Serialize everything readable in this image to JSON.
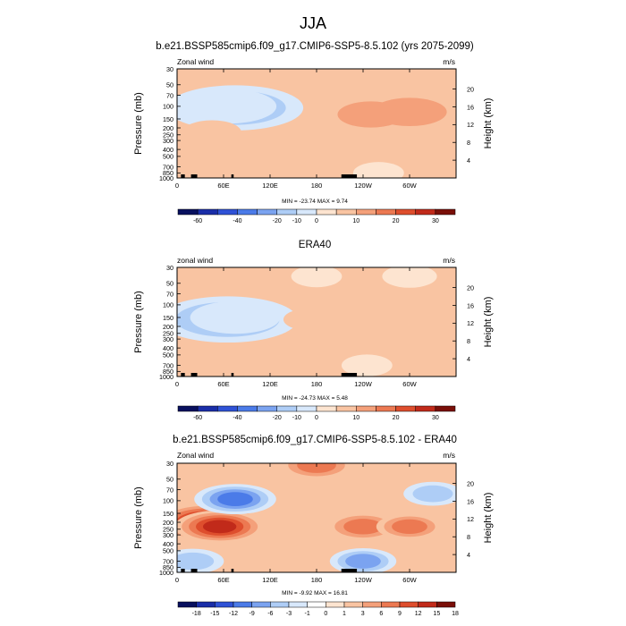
{
  "page": {
    "title": "JJA"
  },
  "colors": {
    "wind_palette": [
      "#08105e",
      "#1a2ea8",
      "#2f52d6",
      "#4b7be8",
      "#7ba3f0",
      "#aecdf6",
      "#d8e8fb",
      "#fde4d0",
      "#f9c4a2",
      "#f4a07a",
      "#ec7952",
      "#de4e2d",
      "#c12a1a",
      "#7a0f08"
    ],
    "diff_palette": [
      "#08105e",
      "#1a2ea8",
      "#2f52d6",
      "#4b7be8",
      "#7ba3f0",
      "#aecdf6",
      "#d8e8fb",
      "#ffffff",
      "#fde4d0",
      "#f9c4a2",
      "#f4a07a",
      "#ec7952",
      "#de4e2d",
      "#c12a1a",
      "#7a0f08"
    ],
    "topography": "#000000"
  },
  "panels": [
    {
      "title": "b.e21.BSSP585cmip6.f09_g17.CMIP6-SSP5-8.5.102 (yrs 2075-2099)",
      "left_label": "Zonal wind",
      "right_label": "m/s",
      "stats": "MIN = -23.74  MAX =  9.74",
      "colorbar_labels": [
        "-60",
        "-40",
        "-20",
        "-10",
        "0",
        "10",
        "20",
        "30"
      ]
    },
    {
      "title": "ERA40",
      "left_label": "zonal wind",
      "right_label": "m/s",
      "stats": "MIN = -24.73  MAX =  5.48",
      "colorbar_labels": [
        "-60",
        "-40",
        "-20",
        "-10",
        "0",
        "10",
        "20",
        "30"
      ]
    },
    {
      "title": "b.e21.BSSP585cmip6.f09_g17.CMIP6-SSP5-8.5.102 - ERA40",
      "left_label": "Zonal wind",
      "right_label": "m/s",
      "stats": "MIN = -9.92  MAX = 16.81",
      "colorbar_labels": [
        "-18",
        "-15",
        "-12",
        "-9",
        "-6",
        "-3",
        "-1",
        "0",
        "1",
        "3",
        "6",
        "9",
        "12",
        "15",
        "18"
      ]
    }
  ],
  "chart_data": [
    {
      "type": "heatmap",
      "title": "b.e21.BSSP585cmip6.f09_g17.CMIP6-SSP5-8.5.102 (yrs 2075-2099)",
      "variable": "Zonal wind",
      "units": "m/s",
      "x_ticks": [
        "0",
        "60E",
        "120E",
        "180",
        "120W",
        "60W"
      ],
      "x_values": [
        0,
        60,
        120,
        180,
        240,
        300
      ],
      "xlim": [
        0,
        360
      ],
      "ylabel": "Pressure (mb)",
      "y_ticks": [
        "30",
        "50",
        "70",
        "100",
        "150",
        "200",
        "250",
        "300",
        "400",
        "500",
        "700",
        "850",
        "1000"
      ],
      "y_values": [
        30,
        50,
        70,
        100,
        150,
        200,
        250,
        300,
        400,
        500,
        700,
        850,
        1000
      ],
      "ylim": [
        30,
        1000
      ],
      "y_scale": "log",
      "y2label": "Height (km)",
      "y2_ticks": [
        "20",
        "16",
        "12",
        "8",
        "4"
      ],
      "y2_values": [
        20,
        16,
        12,
        8,
        4
      ],
      "min": -23.74,
      "max": 9.74,
      "levels": [
        -60,
        -50,
        -40,
        -30,
        -20,
        -15,
        -10,
        0,
        5,
        10,
        15,
        20,
        25,
        30
      ],
      "colorbar_ticks": [
        "-60",
        "-40",
        "-20",
        "-10",
        "0",
        "10",
        "20",
        "30"
      ],
      "features": [
        {
          "lon": 75,
          "p": 105,
          "value": -23.7
        },
        {
          "lon": 65,
          "p": 100,
          "value": -14
        },
        {
          "lon": 45,
          "p": 230,
          "value": 4
        },
        {
          "lon": 300,
          "p": 120,
          "value": 8
        },
        {
          "lon": 250,
          "p": 130,
          "value": 6
        },
        {
          "lon": 260,
          "p": 850,
          "value": -2
        },
        {
          "lon": 180,
          "p": 40,
          "value": 1
        }
      ]
    },
    {
      "type": "heatmap",
      "title": "ERA40",
      "variable": "zonal wind",
      "units": "m/s",
      "x_ticks": [
        "0",
        "60E",
        "120E",
        "180",
        "120W",
        "60W"
      ],
      "x_values": [
        0,
        60,
        120,
        180,
        240,
        300
      ],
      "xlim": [
        0,
        360
      ],
      "ylabel": "Pressure (mb)",
      "y_ticks": [
        "30",
        "50",
        "70",
        "100",
        "150",
        "200",
        "250",
        "300",
        "400",
        "500",
        "700",
        "850",
        "1000"
      ],
      "y_values": [
        30,
        50,
        70,
        100,
        150,
        200,
        250,
        300,
        400,
        500,
        700,
        850,
        1000
      ],
      "ylim": [
        30,
        1000
      ],
      "y_scale": "log",
      "y2label": "Height (km)",
      "y2_ticks": [
        "20",
        "16",
        "12",
        "8",
        "4"
      ],
      "y2_values": [
        20,
        16,
        12,
        8,
        4
      ],
      "min": -24.73,
      "max": 5.48,
      "levels": [
        -60,
        -50,
        -40,
        -30,
        -20,
        -15,
        -10,
        0,
        5,
        10,
        15,
        20,
        25,
        30
      ],
      "colorbar_ticks": [
        "-60",
        "-40",
        "-20",
        "-10",
        "0",
        "10",
        "20",
        "30"
      ],
      "features": [
        {
          "lon": 65,
          "p": 160,
          "value": -24.7
        },
        {
          "lon": 75,
          "p": 150,
          "value": -12
        },
        {
          "lon": 270,
          "p": 200,
          "value": 4
        },
        {
          "lon": 170,
          "p": 160,
          "value": 2
        },
        {
          "lon": 180,
          "p": 40,
          "value": -2
        },
        {
          "lon": 300,
          "p": 40,
          "value": -3
        },
        {
          "lon": 245,
          "p": 700,
          "value": -2
        }
      ]
    },
    {
      "type": "heatmap",
      "title": "b.e21.BSSP585cmip6.f09_g17.CMIP6-SSP5-8.5.102 - ERA40",
      "variable": "Zonal wind",
      "units": "m/s",
      "x_ticks": [
        "0",
        "60E",
        "120E",
        "180",
        "120W",
        "60W"
      ],
      "x_values": [
        0,
        60,
        120,
        180,
        240,
        300
      ],
      "xlim": [
        0,
        360
      ],
      "ylabel": "Pressure (mb)",
      "y_ticks": [
        "30",
        "50",
        "70",
        "100",
        "150",
        "200",
        "250",
        "300",
        "400",
        "500",
        "700",
        "850",
        "1000"
      ],
      "y_values": [
        30,
        50,
        70,
        100,
        150,
        200,
        250,
        300,
        400,
        500,
        700,
        850,
        1000
      ],
      "ylim": [
        30,
        1000
      ],
      "y_scale": "log",
      "y2label": "Height (km)",
      "y2_ticks": [
        "20",
        "16",
        "12",
        "8",
        "4"
      ],
      "y2_values": [
        20,
        16,
        12,
        8,
        4
      ],
      "min": -9.92,
      "max": 16.81,
      "levels": [
        -18,
        -15,
        -12,
        -9,
        -6,
        -3,
        -1,
        0,
        1,
        3,
        6,
        9,
        12,
        15,
        18
      ],
      "colorbar_ticks": [
        "-18",
        "-15",
        "-12",
        "-9",
        "-6",
        "-3",
        "-1",
        "0",
        "1",
        "3",
        "6",
        "9",
        "12",
        "15",
        "18"
      ],
      "features": [
        {
          "lon": 40,
          "p": 200,
          "value": 16.8
        },
        {
          "lon": 55,
          "p": 230,
          "value": 12
        },
        {
          "lon": 75,
          "p": 95,
          "value": -9.9
        },
        {
          "lon": 240,
          "p": 230,
          "value": 8
        },
        {
          "lon": 300,
          "p": 230,
          "value": 6
        },
        {
          "lon": 330,
          "p": 80,
          "value": -4
        },
        {
          "lon": 180,
          "p": 32,
          "value": 8
        },
        {
          "lon": 240,
          "p": 700,
          "value": -6
        },
        {
          "lon": 20,
          "p": 700,
          "value": -5
        }
      ]
    }
  ]
}
